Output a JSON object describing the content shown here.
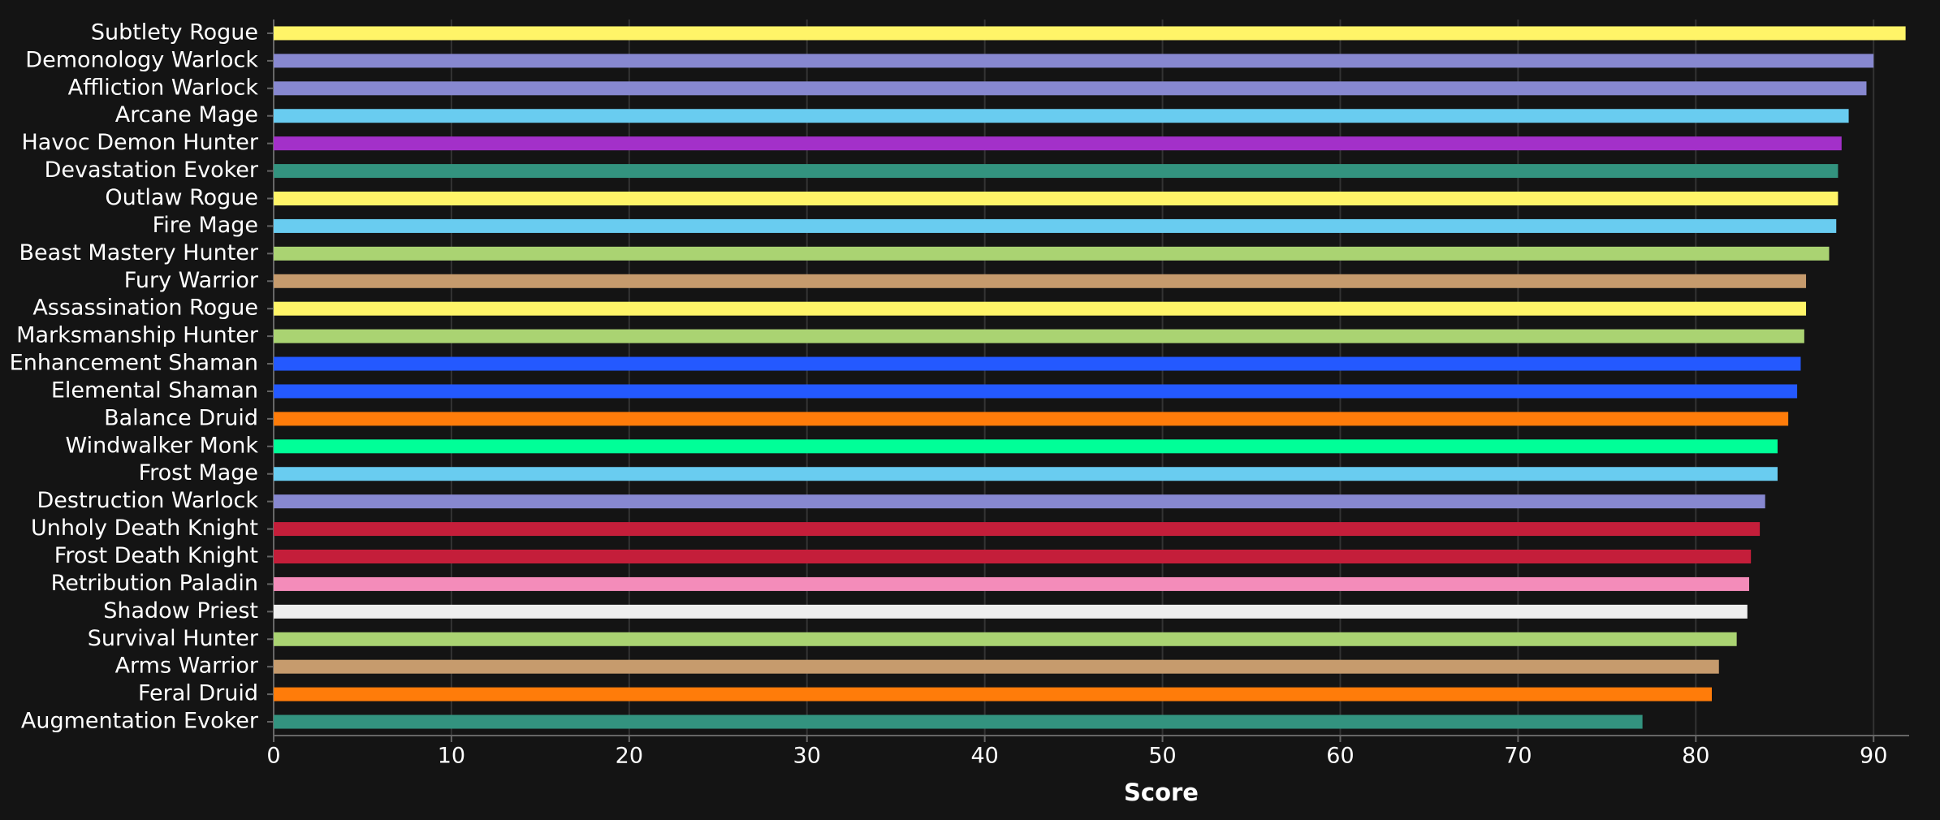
{
  "chart_data": {
    "type": "hbar",
    "x_label": "Score",
    "categories": [
      "Subtlety Rogue",
      "Demonology Warlock",
      "Affliction Warlock",
      "Arcane Mage",
      "Havoc Demon Hunter",
      "Devastation Evoker",
      "Outlaw Rogue",
      "Fire Mage",
      "Beast Mastery Hunter",
      "Fury Warrior",
      "Assassination Rogue",
      "Marksmanship Hunter",
      "Enhancement Shaman",
      "Elemental Shaman",
      "Balance Druid",
      "Windwalker Monk",
      "Frost Mage",
      "Destruction Warlock",
      "Unholy Death Knight",
      "Frost Death Knight",
      "Retribution Paladin",
      "Shadow Priest",
      "Survival Hunter",
      "Arms Warrior",
      "Feral Druid",
      "Augmentation Evoker"
    ],
    "values": [
      91.8,
      90.0,
      89.6,
      88.6,
      88.2,
      88.0,
      88.0,
      87.9,
      87.5,
      86.2,
      86.2,
      86.1,
      85.9,
      85.7,
      85.2,
      84.6,
      84.6,
      83.9,
      83.6,
      83.1,
      83.0,
      82.9,
      82.3,
      81.3,
      80.9,
      77.0
    ],
    "colors": [
      "#fff468",
      "#8788d0",
      "#8788d0",
      "#69ccf0",
      "#a330c9",
      "#33937f",
      "#fff468",
      "#69ccf0",
      "#aad372",
      "#c69b6d",
      "#fff468",
      "#aad372",
      "#2459ff",
      "#2459ff",
      "#ff7c0a",
      "#00ff98",
      "#69ccf0",
      "#8788d0",
      "#c41e3a",
      "#c41e3a",
      "#f48cba",
      "#eeeeee",
      "#aad372",
      "#c69b6d",
      "#ff7c0a",
      "#33937f"
    ],
    "xlim": [
      0,
      92
    ],
    "xticks": [
      0,
      10,
      20,
      30,
      40,
      50,
      60,
      70,
      80,
      90
    ],
    "grid": true
  }
}
